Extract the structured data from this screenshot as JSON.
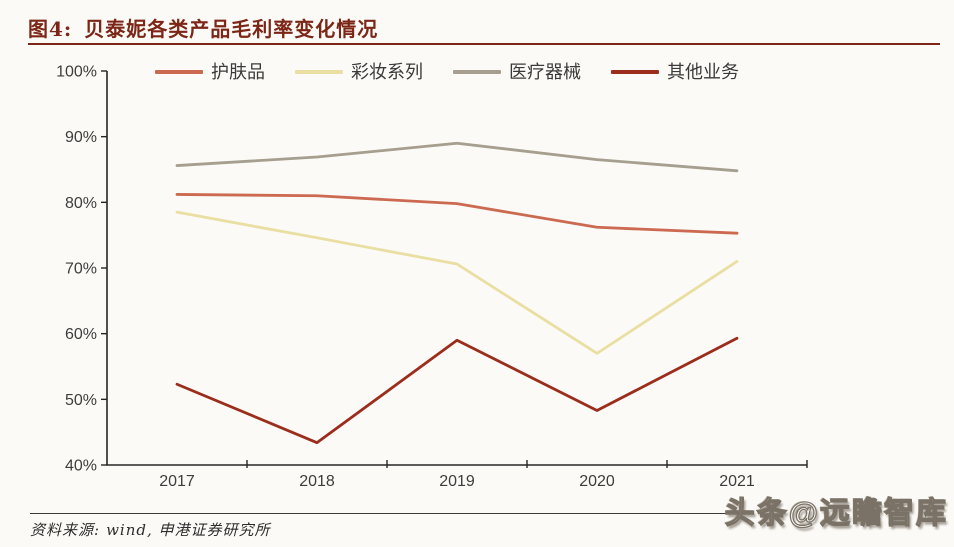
{
  "header": {
    "figure_label": "图4:",
    "title": "贝泰妮各类产品毛利率变化情况"
  },
  "chart_data": {
    "type": "line",
    "title": "贝泰妮各类产品毛利率变化情况",
    "categories": [
      "2017",
      "2018",
      "2019",
      "2020",
      "2021"
    ],
    "series": [
      {
        "name": "护肤品",
        "color": "#cc6a51",
        "values": [
          81.2,
          81.0,
          79.8,
          76.2,
          75.3
        ]
      },
      {
        "name": "彩妆系列",
        "color": "#e9dfa2",
        "values": [
          78.5,
          74.6,
          70.6,
          57.0,
          71.0
        ]
      },
      {
        "name": "医疗器械",
        "color": "#a69e8e",
        "values": [
          85.6,
          86.9,
          89.0,
          86.5,
          84.8
        ]
      },
      {
        "name": "其他业务",
        "color": "#9b2d1c",
        "values": [
          52.3,
          43.4,
          59.0,
          48.3,
          59.3
        ]
      }
    ],
    "xlabel": "",
    "ylabel": "",
    "ylim": [
      40,
      100
    ],
    "ytick_step": 10,
    "ytick_suffix": "%",
    "grid": false,
    "legend_position": "top"
  },
  "footer": {
    "source_label": "资料来源:",
    "source_text": "wind, 申港证券研究所",
    "watermark": "头条@远瞻智库"
  },
  "colors": {
    "accent": "#7c2617",
    "axis_line": "#262626",
    "tick_text": "#3d3d3d",
    "background": "#fcfaf6"
  }
}
